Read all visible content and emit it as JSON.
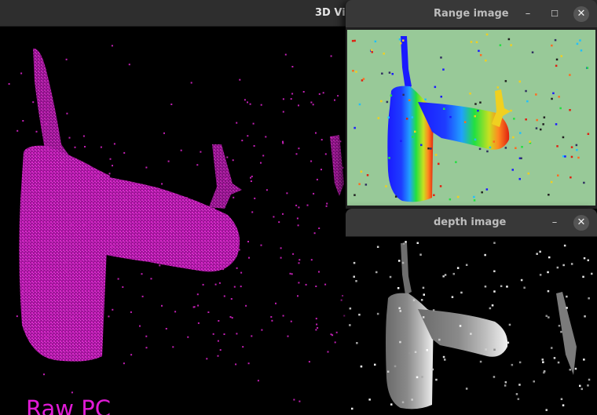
{
  "viewer_window": {
    "title": "3D Vi",
    "overlay_label": "Raw PC",
    "label_color": "#e01ad6",
    "point_color": "#c21fb4"
  },
  "range_window": {
    "title": "Range image",
    "minimize_icon": "minimize-icon",
    "maximize_icon": "maximize-icon",
    "close_icon": "close-icon",
    "minimize_glyph": "–",
    "maximize_glyph": "☐",
    "close_glyph": "✕",
    "background_color": "#98c998"
  },
  "depth_window": {
    "title": "depth image",
    "minimize_icon": "minimize-icon",
    "close_icon": "close-icon",
    "minimize_glyph": "–",
    "close_glyph": "✕"
  }
}
